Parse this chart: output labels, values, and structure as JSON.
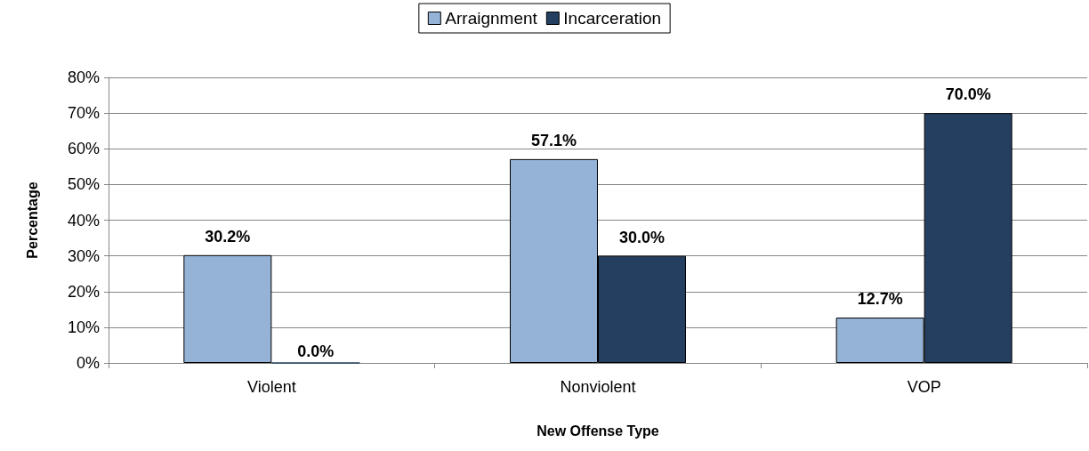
{
  "chart_data": {
    "type": "bar",
    "xlabel": "New Offense Type",
    "ylabel": "Percentage",
    "categories": [
      "Violent",
      "Nonviolent",
      "VOP"
    ],
    "series": [
      {
        "name": "Arraignment",
        "color": "#95b3d7",
        "values": [
          30.2,
          57.1,
          12.7
        ],
        "value_labels": [
          "30.2%",
          "57.1%",
          "12.7%"
        ]
      },
      {
        "name": "Incarceration",
        "color": "#243f60",
        "values": [
          0.0,
          30.0,
          70.0
        ],
        "value_labels": [
          "0.0%",
          "30.0%",
          "70.0%"
        ]
      }
    ],
    "ylim": [
      0,
      80
    ],
    "yticks": [
      {
        "value": 0,
        "label": "0%"
      },
      {
        "value": 10,
        "label": "10%"
      },
      {
        "value": 20,
        "label": "20%"
      },
      {
        "value": 30,
        "label": "30%"
      },
      {
        "value": 40,
        "label": "40%"
      },
      {
        "value": 50,
        "label": "50%"
      },
      {
        "value": 60,
        "label": "60%"
      },
      {
        "value": 70,
        "label": "70%"
      },
      {
        "value": 80,
        "label": "80%"
      }
    ],
    "grid": "y",
    "legend": "top"
  }
}
